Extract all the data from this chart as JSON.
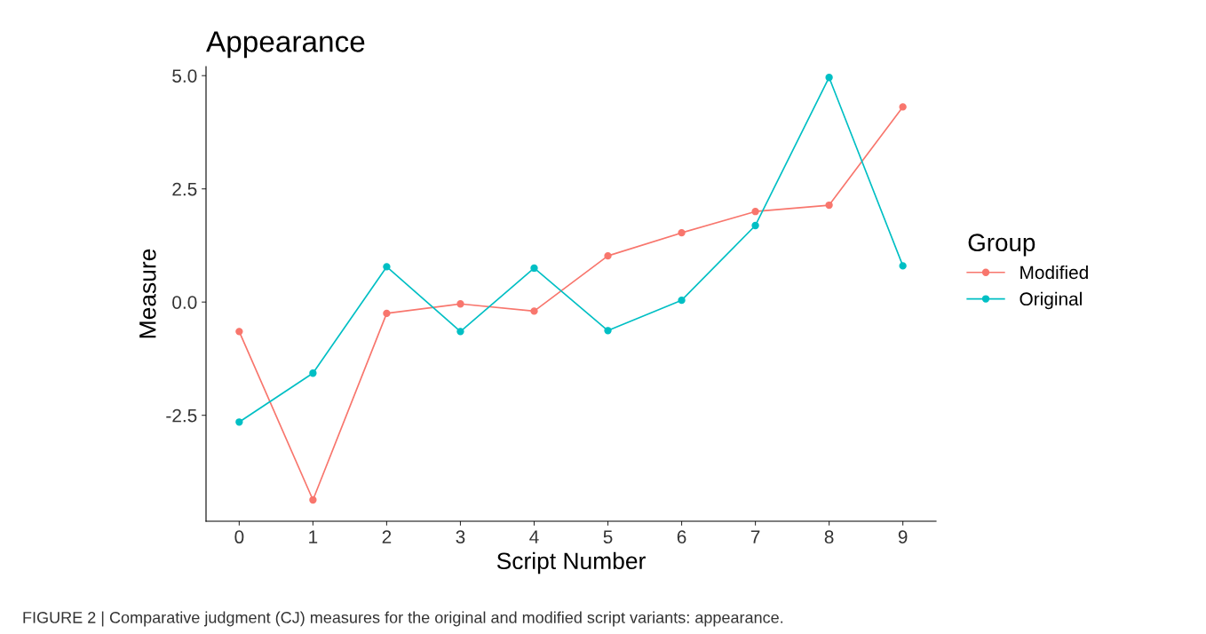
{
  "chart_data": {
    "type": "line",
    "title": "Appearance",
    "xlabel": "Script Number",
    "ylabel": "Measure",
    "legend_title": "Group",
    "x": [
      0,
      1,
      2,
      3,
      4,
      5,
      6,
      7,
      8,
      9
    ],
    "series": [
      {
        "name": "Modified",
        "color": "#f8766d",
        "values": [
          -0.65,
          -4.37,
          -0.25,
          -0.04,
          -0.2,
          1.02,
          1.53,
          2.0,
          2.14,
          4.31
        ]
      },
      {
        "name": "Original",
        "color": "#00bfc4",
        "values": [
          -2.65,
          -1.57,
          0.78,
          -0.65,
          0.75,
          -0.63,
          0.04,
          1.69,
          4.96,
          0.8
        ]
      }
    ],
    "xlim": [
      -0.45,
      9.45
    ],
    "xticks": [
      0,
      1,
      2,
      3,
      4,
      5,
      6,
      7,
      8,
      9
    ],
    "ylim": [
      -4.84,
      5.2
    ],
    "yticks": [
      {
        "value": -2.5,
        "label": "-2.5"
      },
      {
        "value": 0,
        "label": "0.0"
      },
      {
        "value": 2.5,
        "label": "2.5"
      },
      {
        "value": 5,
        "label": "5.0"
      }
    ],
    "grid": false,
    "legend": "right",
    "marker": "circle",
    "line_style": "solid",
    "annotations": [
      "FIGURE 2 | Comparative judgment (CJ) measures for the original and modified script variants: appearance."
    ]
  }
}
